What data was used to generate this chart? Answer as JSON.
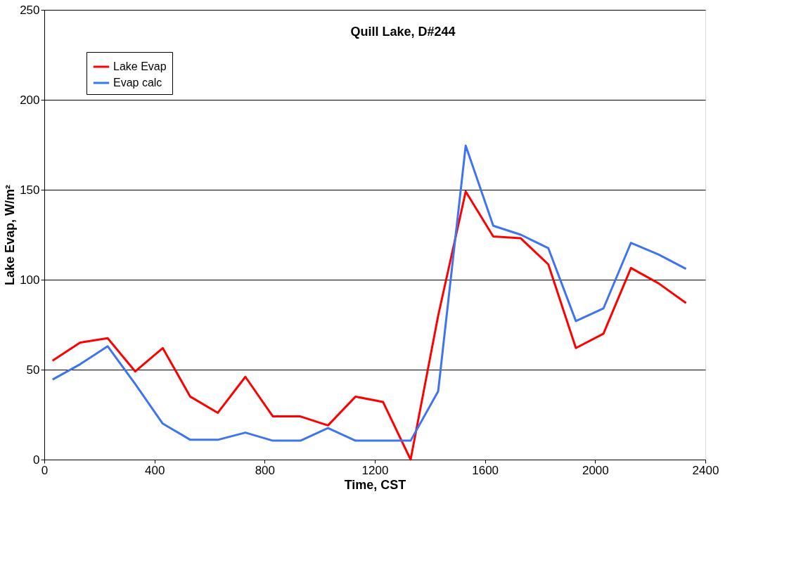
{
  "chart_data": {
    "type": "line",
    "title": "Quill Lake, D#244",
    "xlabel": "Time, CST",
    "ylabel": "Lake Evap, W/m²",
    "x": [
      30,
      130,
      230,
      330,
      430,
      530,
      630,
      730,
      830,
      930,
      1030,
      1130,
      1230,
      1330,
      1430,
      1530,
      1630,
      1730,
      1830,
      1930,
      2030,
      2130,
      2230,
      2330
    ],
    "series": [
      {
        "name": "Lake Evap",
        "color": "#ff0000",
        "values": [
          55,
          65,
          67.5,
          49,
          62,
          35,
          26,
          46,
          24,
          24,
          19,
          35,
          32,
          0,
          80,
          149,
          124,
          123,
          108.5,
          62,
          70,
          106.5,
          98,
          87
        ]
      },
      {
        "name": "Evap calc",
        "color": "#3f74f0",
        "values": [
          44.5,
          53,
          63,
          42,
          20,
          11,
          11,
          15,
          10.5,
          10.5,
          17.5,
          10.5,
          10.5,
          10.5,
          38,
          174.5,
          130,
          125,
          117.5,
          77,
          84,
          120.5,
          114,
          106
        ]
      }
    ],
    "xlim": [
      0,
      2400
    ],
    "xticks": [
      0,
      400,
      800,
      1200,
      1600,
      2000,
      2400
    ],
    "ylim": [
      0,
      250
    ],
    "yticks": [
      0,
      50,
      100,
      150,
      200,
      250
    ],
    "grid": "y",
    "legend": "top left",
    "marker": "none",
    "line_style": "solid"
  }
}
